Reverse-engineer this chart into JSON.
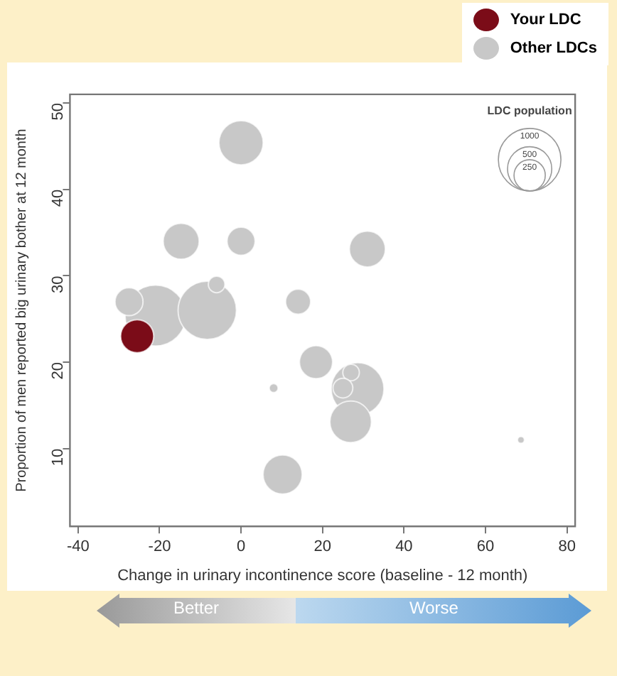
{
  "chart_data": {
    "type": "bubble",
    "xlabel": "Change in urinary incontinence score (baseline - 12 month)",
    "ylabel": "Proportion of men reported big urinary bother at 12 month",
    "xlim": [
      -42,
      82
    ],
    "xticks": [
      -40,
      -20,
      0,
      20,
      40,
      60,
      80
    ],
    "ylim": [
      1,
      51
    ],
    "yticks": [
      10,
      20,
      30,
      40,
      50
    ],
    "grid": false,
    "legend": "top right",
    "marker": "circle",
    "size_legend": [
      250,
      500,
      1000
    ],
    "annotations": [
      "LDC population",
      "Better",
      "Worse"
    ],
    "series": [
      {
        "name": "Other LDCs",
        "color": "#c8c8c8",
        "x": [
          -21,
          -8.3,
          0,
          -14.7,
          0,
          31,
          -27.5,
          -6,
          14,
          18.4,
          8,
          28.6,
          27,
          25,
          26.9,
          10.2,
          68.7
        ],
        "values": [
          25.4,
          26,
          45.4,
          34,
          34,
          33.1,
          27,
          29,
          27,
          20,
          17,
          16.9,
          18.8,
          17,
          13.1,
          7,
          11
        ],
        "sizes": [
          950,
          870,
          500,
          330,
          200,
          330,
          200,
          70,
          160,
          280,
          20,
          710,
          70,
          100,
          440,
          390,
          12
        ]
      },
      {
        "name": "Your LDC",
        "color": "#7b0c18",
        "x": [
          -25.5
        ],
        "values": [
          23
        ],
        "sizes": [
          280
        ]
      }
    ]
  }
}
